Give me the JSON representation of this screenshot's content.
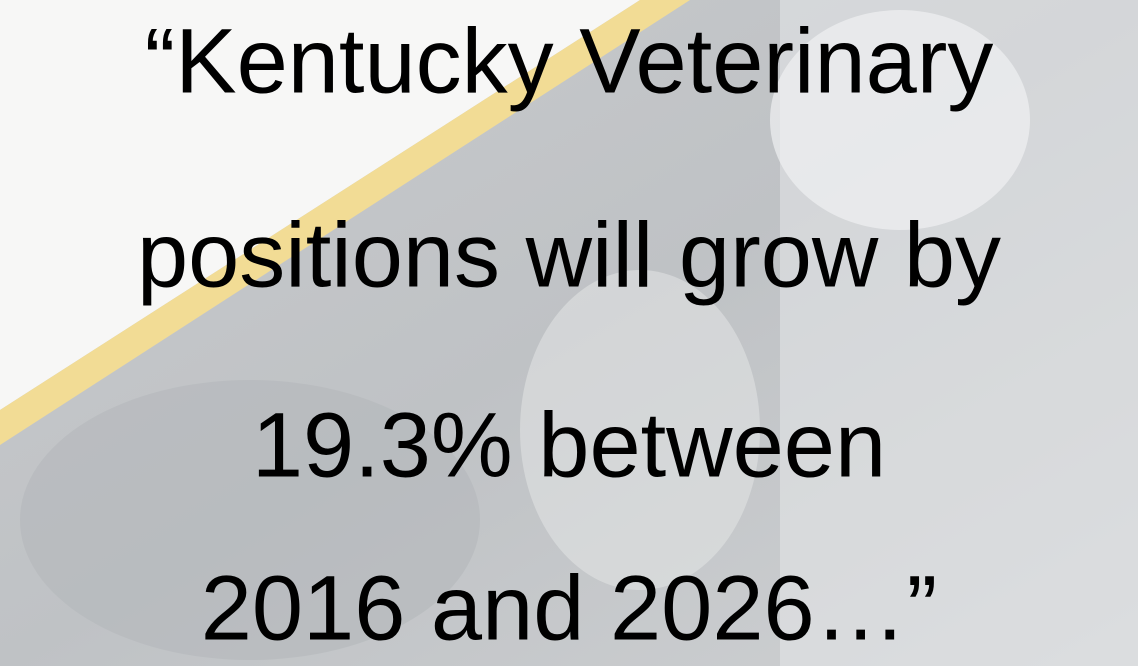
{
  "quote": {
    "lines": [
      "“Kentucky Veterinary",
      "positions will grow by",
      "19.3% between",
      "2016 and 2026…”"
    ]
  }
}
